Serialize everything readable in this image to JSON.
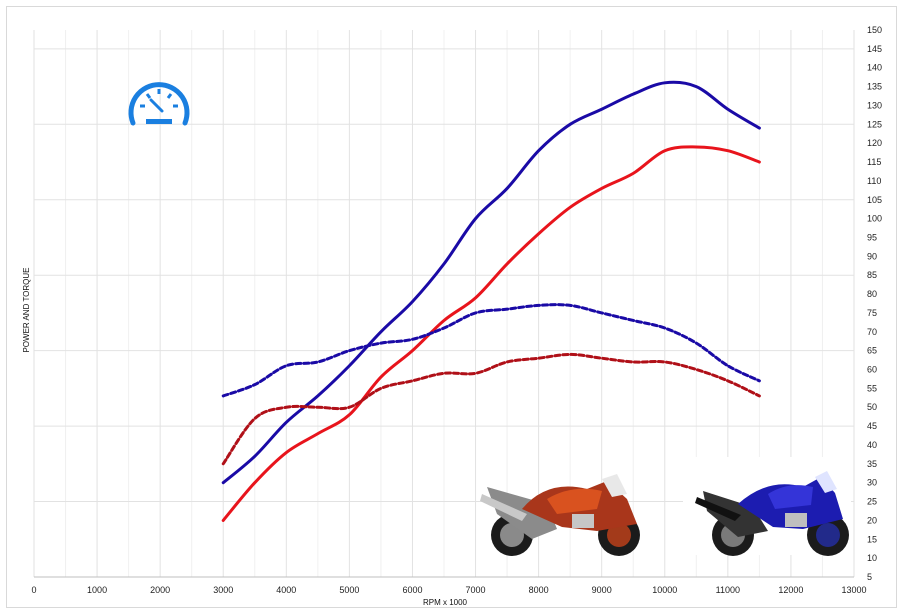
{
  "chart_data": {
    "type": "line",
    "xlabel": "RPM x 1000",
    "ylabel": "POWER AND TORQUE",
    "xlim": [
      0,
      13000
    ],
    "x_ticks": [
      0,
      1000,
      2000,
      3000,
      4000,
      5000,
      6000,
      7000,
      8000,
      9000,
      10000,
      11000,
      12000,
      13000
    ],
    "ylim": [
      5,
      150
    ],
    "y_ticks": [
      5,
      10,
      15,
      20,
      25,
      30,
      35,
      40,
      45,
      50,
      55,
      60,
      65,
      70,
      75,
      80,
      85,
      90,
      95,
      100,
      105,
      110,
      115,
      120,
      125,
      130,
      135,
      140,
      145,
      150
    ],
    "y_axis_side": "right",
    "grid": true,
    "legend": "none",
    "series": [
      {
        "color": "#1a0aa6",
        "style": "solid",
        "x": [
          3000,
          3500,
          4000,
          4500,
          5000,
          5500,
          6000,
          6500,
          7000,
          7500,
          8000,
          8500,
          9000,
          9500,
          10000,
          10500,
          11000,
          11500
        ],
        "y": [
          30,
          37,
          46,
          53,
          61,
          70,
          78,
          88,
          100,
          108,
          118,
          125,
          129,
          133,
          136,
          135,
          129,
          124
        ]
      },
      {
        "color": "#e8141c",
        "style": "solid",
        "x": [
          3000,
          3500,
          4000,
          4500,
          5000,
          5500,
          6000,
          6500,
          7000,
          7500,
          8000,
          8500,
          9000,
          9500,
          10000,
          10500,
          11000,
          11500
        ],
        "y": [
          20,
          30,
          38,
          43,
          48,
          58,
          65,
          73,
          79,
          88,
          96,
          103,
          108,
          112,
          118,
          119,
          118,
          115
        ]
      },
      {
        "color": "#1a0aa6",
        "style": "dashed",
        "x": [
          3000,
          3500,
          4000,
          4500,
          5000,
          5500,
          6000,
          6500,
          7000,
          7500,
          8000,
          8500,
          9000,
          9500,
          10000,
          10500,
          11000,
          11500
        ],
        "y": [
          53,
          56,
          61,
          62,
          65,
          67,
          68,
          71,
          75,
          76,
          77,
          77,
          75,
          73,
          71,
          67,
          61,
          57
        ]
      },
      {
        "color": "#b01018",
        "style": "dashed",
        "x": [
          3000,
          3500,
          4000,
          4500,
          5000,
          5500,
          6000,
          6500,
          7000,
          7500,
          8000,
          8500,
          9000,
          9500,
          10000,
          10500,
          11000,
          11500
        ],
        "y": [
          35,
          47,
          50,
          50,
          50,
          55,
          57,
          59,
          59,
          62,
          63,
          64,
          63,
          62,
          62,
          60,
          57,
          53
        ]
      }
    ]
  },
  "decor": {
    "gauge_icon": "speedometer-icon",
    "gauge_color": "#1a7fe0",
    "images": [
      "red-sport-motorcycle",
      "blue-sport-motorcycle"
    ]
  }
}
